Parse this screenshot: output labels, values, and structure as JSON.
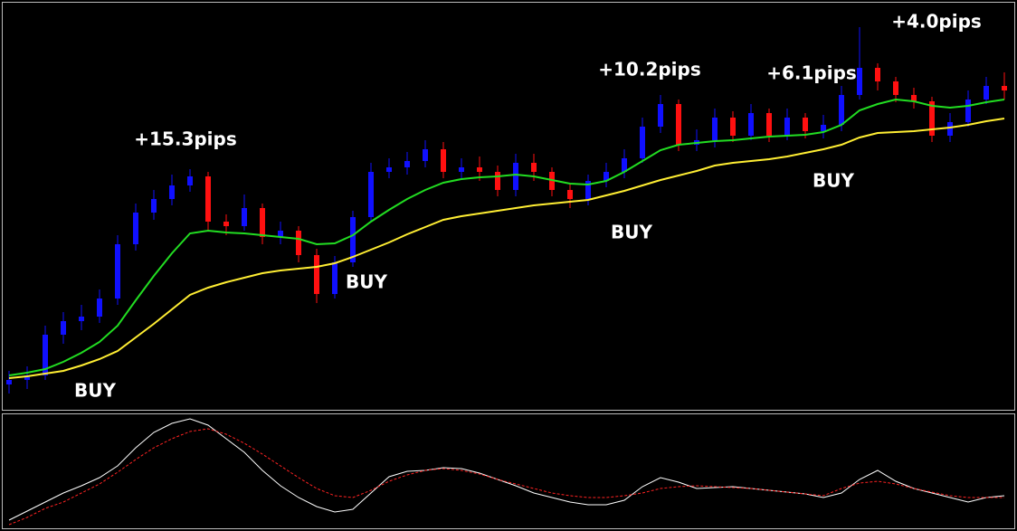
{
  "chart_data": [
    {
      "type": "candlestick",
      "up_color": "#1010ff",
      "down_color": "#ff1010",
      "ylim": [
        0,
        450
      ],
      "open": [
        30,
        35,
        40,
        85,
        100,
        105,
        125,
        185,
        220,
        235,
        250,
        260,
        210,
        205,
        225,
        193,
        200,
        173,
        130,
        165,
        215,
        265,
        270,
        277,
        290,
        265,
        270,
        265,
        245,
        275,
        265,
        245,
        235,
        255,
        265,
        280,
        315,
        340,
        295,
        300,
        325,
        305,
        330,
        305,
        325,
        310,
        317,
        350,
        380,
        365,
        350,
        343,
        305,
        320,
        345,
        360
      ],
      "high": [
        45,
        50,
        95,
        110,
        118,
        135,
        195,
        230,
        245,
        262,
        268,
        265,
        218,
        240,
        230,
        210,
        205,
        180,
        172,
        222,
        275,
        280,
        287,
        300,
        298,
        280,
        282,
        272,
        285,
        285,
        270,
        252,
        262,
        275,
        290,
        325,
        350,
        345,
        312,
        335,
        332,
        340,
        335,
        335,
        330,
        328,
        360,
        425,
        385,
        370,
        358,
        348,
        330,
        355,
        370,
        375
      ],
      "low": [
        20,
        25,
        35,
        75,
        90,
        98,
        118,
        178,
        212,
        228,
        243,
        200,
        195,
        200,
        185,
        185,
        165,
        120,
        125,
        160,
        210,
        258,
        262,
        270,
        258,
        258,
        255,
        238,
        238,
        255,
        238,
        225,
        228,
        248,
        258,
        275,
        308,
        288,
        288,
        292,
        298,
        300,
        298,
        300,
        302,
        302,
        310,
        345,
        355,
        342,
        335,
        298,
        298,
        315,
        340,
        345
      ],
      "close": [
        35,
        40,
        85,
        100,
        105,
        125,
        185,
        220,
        235,
        250,
        260,
        210,
        205,
        225,
        193,
        200,
        173,
        130,
        165,
        215,
        265,
        270,
        277,
        290,
        265,
        270,
        265,
        245,
        275,
        265,
        245,
        235,
        255,
        265,
        280,
        315,
        340,
        295,
        300,
        325,
        305,
        330,
        305,
        325,
        310,
        317,
        350,
        380,
        365,
        350,
        343,
        305,
        320,
        345,
        360,
        355
      ],
      "series": [
        {
          "color": "#22dd22",
          "values": [
            40,
            43,
            47,
            55,
            65,
            77,
            95,
            123,
            150,
            175,
            197,
            200,
            198,
            197,
            195,
            193,
            191,
            185,
            186,
            195,
            210,
            223,
            235,
            245,
            253,
            257,
            259,
            260,
            262,
            260,
            256,
            252,
            251,
            255,
            265,
            277,
            289,
            295,
            297,
            299,
            300,
            302,
            304,
            305,
            306,
            309,
            317,
            333,
            340,
            345,
            343,
            338,
            336,
            338,
            342,
            345
          ]
        },
        {
          "color": "#ffee33",
          "values": [
            37,
            39,
            42,
            45,
            51,
            58,
            67,
            82,
            97,
            113,
            129,
            137,
            143,
            148,
            153,
            156,
            158,
            160,
            164,
            171,
            179,
            187,
            196,
            204,
            212,
            216,
            219,
            222,
            225,
            228,
            230,
            232,
            234,
            239,
            244,
            250,
            256,
            261,
            266,
            272,
            275,
            277,
            279,
            282,
            286,
            290,
            295,
            303,
            308,
            309,
            310,
            312,
            314,
            317,
            321,
            324
          ]
        }
      ],
      "annotations": [
        {
          "text": "+15.3pips",
          "x": 9.75,
          "y": 300
        },
        {
          "text": "+10.2pips",
          "x": 35.4,
          "y": 377
        },
        {
          "text": "+6.1pips",
          "x": 44.35,
          "y": 373
        },
        {
          "text": "+4.0pips",
          "x": 51.25,
          "y": 430
        },
        {
          "text": "BUY",
          "x": 4.75,
          "y": 22
        },
        {
          "text": "BUY",
          "x": 19.75,
          "y": 142
        },
        {
          "text": "BUY",
          "x": 34.4,
          "y": 197
        },
        {
          "text": "BUY",
          "x": 45.55,
          "y": 254
        }
      ]
    },
    {
      "type": "line",
      "ylim": [
        0,
        100
      ],
      "series": [
        {
          "color": "#ffffff",
          "values": [
            6.4,
            14.4,
            22.4,
            30.4,
            36.8,
            44,
            54.4,
            70.4,
            84,
            92,
            96,
            90.4,
            78.4,
            66.4,
            50.4,
            36.8,
            26.4,
            18.4,
            13.6,
            16,
            30.4,
            44.8,
            49.6,
            50.4,
            52.8,
            52,
            48,
            42.4,
            36.8,
            30.4,
            26.4,
            22.4,
            20,
            20,
            24,
            36,
            44,
            40,
            34.4,
            35.2,
            36,
            34.4,
            32.8,
            31.2,
            29.6,
            26.4,
            30.4,
            42.4,
            50.4,
            40.8,
            34.4,
            30.4,
            26.4,
            22.4,
            26.4,
            28
          ]
        },
        {
          "color": "#ff2222",
          "dashed": true,
          "values": [
            2.4,
            8.8,
            16.8,
            22.4,
            30.4,
            38.4,
            48.8,
            60,
            70.4,
            78.4,
            84.8,
            87.2,
            82.4,
            74.4,
            64.8,
            54.4,
            44,
            34.4,
            28,
            26.4,
            32.8,
            40.8,
            46.4,
            50.4,
            52,
            50.4,
            47.2,
            42.4,
            38.4,
            34.4,
            30.4,
            28,
            26.4,
            26.4,
            28,
            30.4,
            34.4,
            36,
            36.8,
            36,
            35.2,
            34.4,
            32.8,
            31.2,
            29.6,
            28,
            34.4,
            39.2,
            40.8,
            38.4,
            34.4,
            31.2,
            28,
            26.4,
            26.4,
            26.4
          ]
        }
      ]
    }
  ]
}
